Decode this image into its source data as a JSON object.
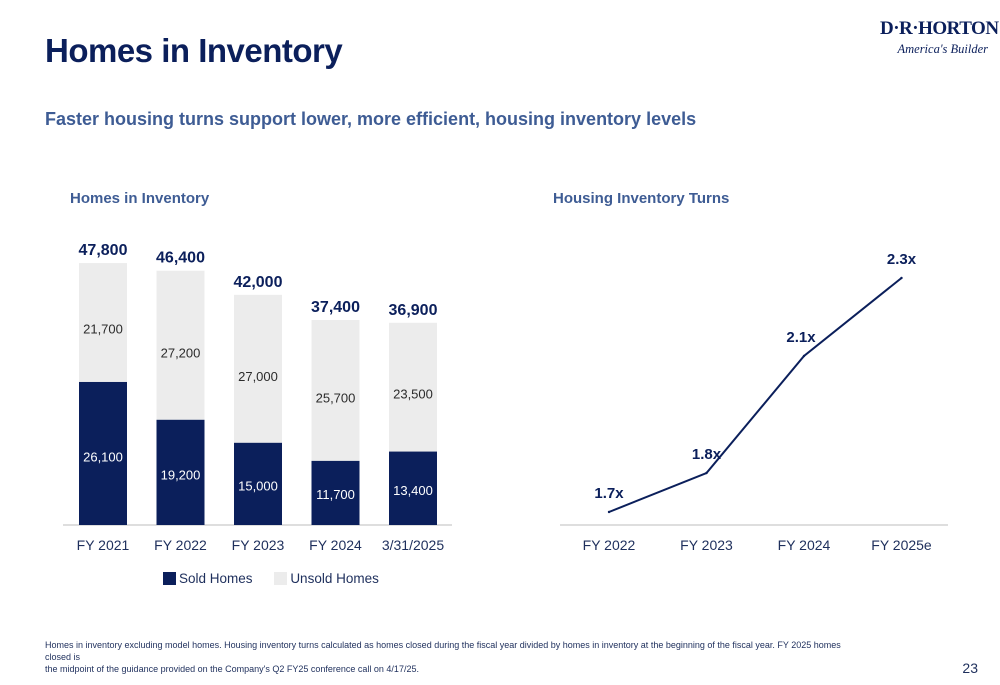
{
  "header": {
    "title": "Homes in Inventory",
    "subtitle": "Faster housing turns support lower, more efficient, housing inventory levels"
  },
  "logo": {
    "brand": "D·R·HORTON",
    "tagline": "America's Builder"
  },
  "colors": {
    "navy": "#0b1f5b",
    "sold": "#0b1f5b",
    "unsold": "#ececec",
    "subtitle_blue": "#3e5c94",
    "axis": "#bdbdbd"
  },
  "chart_data": [
    {
      "type": "bar",
      "title": "Homes in Inventory",
      "stacked": true,
      "categories": [
        "FY 2021",
        "FY 2022",
        "FY 2023",
        "FY 2024",
        "3/31/2025"
      ],
      "series": [
        {
          "name": "Sold Homes",
          "values": [
            26100,
            19200,
            15000,
            11700,
            13400
          ],
          "value_labels": [
            "26,100",
            "19,200",
            "15,000",
            "11,700",
            "13,400"
          ]
        },
        {
          "name": "Unsold Homes",
          "values": [
            21700,
            27200,
            27000,
            25700,
            23500
          ],
          "value_labels": [
            "21,700",
            "27,200",
            "27,000",
            "25,700",
            "23,500"
          ]
        }
      ],
      "totals": [
        47800,
        46400,
        42000,
        37400,
        36900
      ],
      "total_labels": [
        "47,800",
        "46,400",
        "42,000",
        "37,400",
        "36,900"
      ],
      "legend": "bottom"
    },
    {
      "type": "line",
      "title": "Housing Inventory Turns",
      "categories": [
        "FY 2022",
        "FY 2023",
        "FY 2024",
        "FY 2025e"
      ],
      "values": [
        1.7,
        1.8,
        2.1,
        2.3
      ],
      "value_labels": [
        "1.7x",
        "1.8x",
        "2.1x",
        "2.3x"
      ]
    }
  ],
  "legend": {
    "sold": "Sold Homes",
    "unsold": "Unsold Homes"
  },
  "footnote": {
    "line1": "Homes in inventory excluding model homes. Housing inventory turns calculated as homes closed during the fiscal year divided by homes in inventory at the beginning of the fiscal year. FY 2025 homes closed is",
    "line2": "the midpoint of the guidance provided on the Company's Q2 FY25 conference call on 4/17/25."
  },
  "page_number": "23"
}
